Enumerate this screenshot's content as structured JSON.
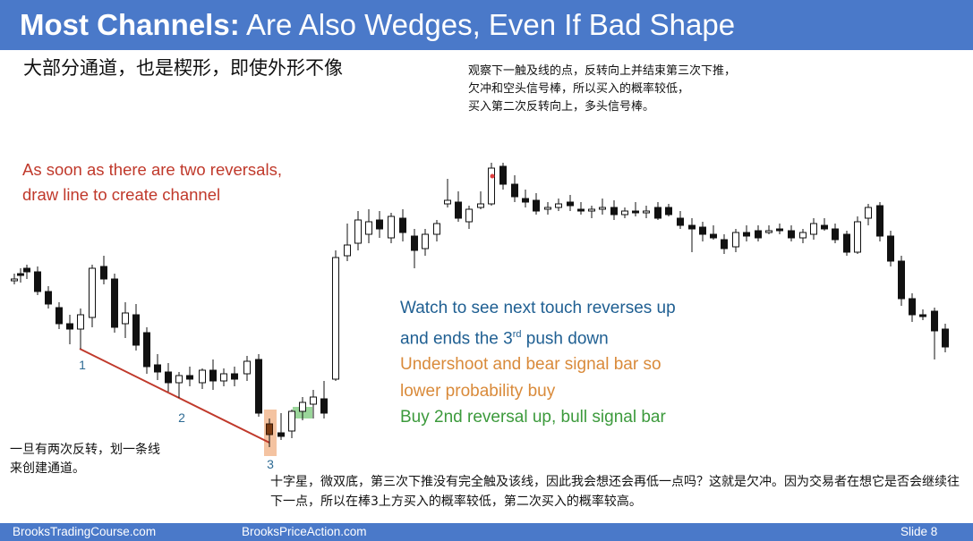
{
  "slide": {
    "title_bold": "Most Channels:",
    "title_rest": " Are Also Wedges, Even If Bad Shape",
    "subtitle_cn": "大部分通道，也是楔形，即使外形不像",
    "note_cn_top": [
      "观察下一触及线的点，反转向上并结束第三次下推，",
      "欠冲和空头信号棒，所以买入的概率较低，",
      "买入第二次反转向上，多头信号棒。"
    ],
    "note_red": [
      "As soon as there are two reversals,",
      "draw line to create channel"
    ],
    "note_watch": {
      "line1": "Watch to see next touch reverses up",
      "line2_pre": "and ends the 3",
      "line2_sup": "rd",
      "line2_post": " push down",
      "line3": "Undershoot and bear signal bar so",
      "line4": "lower probability buy",
      "line5": "Buy 2nd reversal up, bull signal bar"
    },
    "note_cn_left": [
      "一旦有两次反转，划一条线",
      "来创建通道。"
    ],
    "note_cn_bottom": "十字星，微双底，第三次下推没有完全触及该线，因此我会想还会再低一点吗？这就是欠冲。因为交易者在想它是否会继续往下一点，所以在棒3上方买入的概率较低，第二次买入的概率较高。",
    "point_labels": [
      "1",
      "2",
      "3"
    ],
    "footer": {
      "left": "BrooksTradingCourse.com",
      "middle": "BrooksPriceAction.com",
      "right": "Slide  8"
    },
    "colors": {
      "header": "#4a79c9",
      "channel_line": "#c0392b",
      "red_text": "#c0392b",
      "blue_text": "#1f5f92",
      "orange_text": "#d98a3a",
      "green_text": "#3c9a3c",
      "label_blue": "#2e6b94",
      "orange_highlight": "#f2b990",
      "green_highlight": "#8fd18f"
    }
  }
}
